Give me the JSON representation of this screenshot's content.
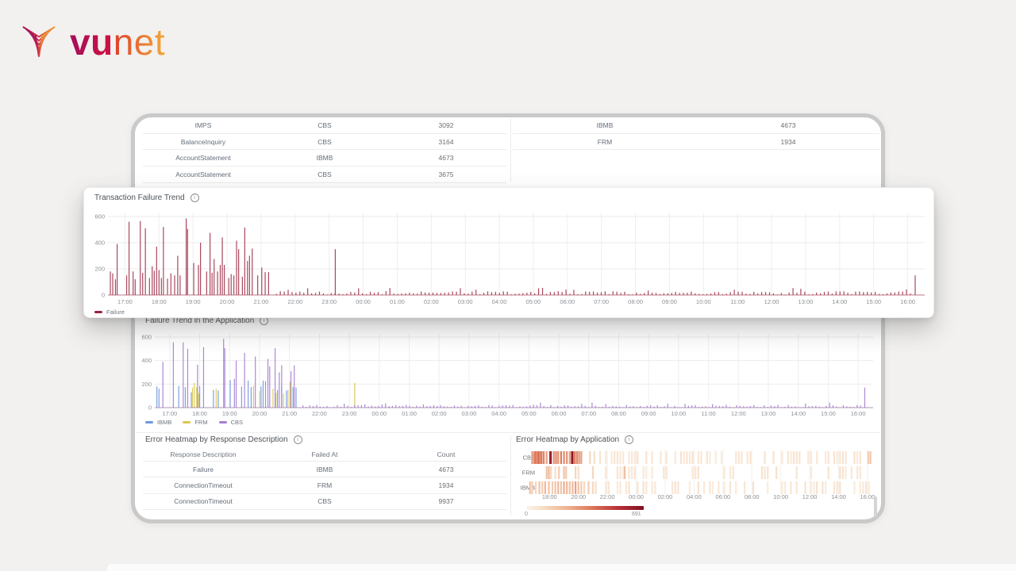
{
  "brand": {
    "primary": "vu",
    "secondary": "net"
  },
  "colors": {
    "page_bg": "#f2f1ef",
    "frame_border": "#c9c9c9",
    "failure": "#a23850",
    "ibmb": "#7297dd",
    "frm": "#d8c84e",
    "cbs": "#a47fd1",
    "heat_dark": "#7e1222"
  },
  "top_tables": {
    "left_rows": [
      [
        "IMPS",
        "CBS",
        "3092"
      ],
      [
        "BalanceInquiry",
        "CBS",
        "3164"
      ],
      [
        "AccountStatement",
        "IBMB",
        "4673"
      ],
      [
        "AccountStatement",
        "CBS",
        "3675"
      ]
    ],
    "right_rows": [
      [
        "IBMB",
        "4673"
      ],
      [
        "FRM",
        "1934"
      ]
    ]
  },
  "popup": {
    "title": "Transaction Failure Trend",
    "legend": [
      {
        "label": "Failure",
        "color": "#9b2140"
      }
    ]
  },
  "app_panel": {
    "title": "Failure Trend in the Application",
    "legend": [
      {
        "label": "IBMB",
        "color": "#7297dd"
      },
      {
        "label": "FRM",
        "color": "#d8c84e"
      },
      {
        "label": "CBS",
        "color": "#a47fd1"
      }
    ]
  },
  "error_table": {
    "title": "Error Heatmap by Response Description",
    "headers": [
      "Response Description",
      "Failed At",
      "Count"
    ],
    "rows": [
      [
        "Failure",
        "IBMB",
        "4673"
      ],
      [
        "ConnectionTimeout",
        "FRM",
        "1934"
      ],
      [
        "ConnectionTimeout",
        "CBS",
        "9937"
      ]
    ]
  },
  "heatmap_panel": {
    "title": "Error Heatmap by Application",
    "scale_min": "0",
    "scale_max": "691"
  },
  "chart_data": [
    {
      "type": "line",
      "title": "Transaction Failure Trend",
      "ylabel": "",
      "xlabel": "",
      "ylim": [
        0,
        600
      ],
      "yticks": [
        0,
        200,
        400,
        600
      ],
      "xticks": [
        "17:00",
        "18:00",
        "19:00",
        "20:00",
        "21:00",
        "22:00",
        "23:00",
        "00:00",
        "01:00",
        "02:00",
        "03:00",
        "04:00",
        "05:00",
        "06:00",
        "07:00",
        "08:00",
        "09:00",
        "10:00",
        "11:00",
        "12:00",
        "13:00",
        "14:00",
        "15:00",
        "16:00"
      ],
      "legend_position": "bottom-left",
      "series": [
        {
          "name": "Failure",
          "color": "#a23850",
          "spikes": [
            [
              0.07,
              180
            ],
            [
              0.14,
              165
            ],
            [
              0.22,
              120
            ],
            [
              0.27,
              390
            ],
            [
              0.55,
              150
            ],
            [
              0.62,
              560
            ],
            [
              0.74,
              180
            ],
            [
              0.8,
              120
            ],
            [
              0.95,
              565
            ],
            [
              1.02,
              170
            ],
            [
              1.1,
              510
            ],
            [
              1.22,
              130
            ],
            [
              1.3,
              220
            ],
            [
              1.36,
              185
            ],
            [
              1.43,
              370
            ],
            [
              1.5,
              190
            ],
            [
              1.57,
              130
            ],
            [
              1.63,
              520
            ],
            [
              1.75,
              125
            ],
            [
              1.85,
              165
            ],
            [
              1.96,
              150
            ],
            [
              2.05,
              300
            ],
            [
              2.12,
              150
            ],
            [
              2.3,
              585
            ],
            [
              2.34,
              505
            ],
            [
              2.52,
              245
            ],
            [
              2.66,
              230
            ],
            [
              2.72,
              400
            ],
            [
              2.9,
              180
            ],
            [
              3,
              475
            ],
            [
              3.06,
              170
            ],
            [
              3.12,
              275
            ],
            [
              3.22,
              180
            ],
            [
              3.3,
              230
            ],
            [
              3.36,
              440
            ],
            [
              3.42,
              230
            ],
            [
              3.55,
              130
            ],
            [
              3.62,
              160
            ],
            [
              3.7,
              150
            ],
            [
              3.78,
              415
            ],
            [
              3.84,
              350
            ],
            [
              3.95,
              140
            ],
            [
              4.02,
              515
            ],
            [
              4.1,
              260
            ],
            [
              4.16,
              300
            ],
            [
              4.24,
              355
            ],
            [
              4.4,
              150
            ],
            [
              4.52,
              210
            ],
            [
              4.62,
              175
            ],
            [
              4.72,
              175
            ],
            [
              6.68,
              350
            ],
            [
              23.72,
              150
            ]
          ],
          "noise": {
            "from": 4.95,
            "to": 23.62,
            "step": 0.115,
            "base": 4,
            "max": 26,
            "seed": 1.3
          }
        }
      ]
    },
    {
      "type": "line",
      "title": "Failure Trend in the Application",
      "ylabel": "",
      "xlabel": "",
      "ylim": [
        0,
        600
      ],
      "yticks": [
        0,
        200,
        400,
        600
      ],
      "xticks": [
        "17:00",
        "18:00",
        "19:00",
        "20:00",
        "21:00",
        "22:00",
        "23:00",
        "00:00",
        "01:00",
        "02:00",
        "03:00",
        "04:00",
        "05:00",
        "06:00",
        "07:00",
        "08:00",
        "09:00",
        "10:00",
        "11:00",
        "12:00",
        "13:00",
        "14:00",
        "15:00",
        "16:00"
      ],
      "legend_position": "bottom-left",
      "series": [
        {
          "name": "IBMB",
          "color": "#7297dd",
          "spikes": [
            [
              0.07,
              180
            ],
            [
              0.14,
              160
            ],
            [
              0.8,
              185
            ],
            [
              1.02,
              175
            ],
            [
              1.22,
              130
            ],
            [
              1.5,
              185
            ],
            [
              1.96,
              150
            ],
            [
              2.12,
              145
            ],
            [
              2.52,
              235
            ],
            [
              2.9,
              180
            ],
            [
              3.12,
              230
            ],
            [
              3.22,
              175
            ],
            [
              3.55,
              180
            ],
            [
              3.62,
              230
            ],
            [
              3.7,
              225
            ],
            [
              4.1,
              150
            ],
            [
              4.24,
              180
            ],
            [
              4.4,
              145
            ],
            [
              4.62,
              175
            ],
            [
              4.72,
              170
            ]
          ]
        },
        {
          "name": "FRM",
          "color": "#d8c84e",
          "spikes": [
            [
              1.26,
              170
            ],
            [
              1.32,
              210
            ],
            [
              1.4,
              175
            ],
            [
              1.47,
              120
            ],
            [
              2.05,
              160
            ],
            [
              3.3,
              185
            ],
            [
              3.5,
              140
            ],
            [
              3.95,
              160
            ],
            [
              4.05,
              125
            ],
            [
              4.3,
              120
            ],
            [
              4.45,
              150
            ],
            [
              4.52,
              220
            ],
            [
              6.68,
              210
            ]
          ]
        },
        {
          "name": "CBS",
          "color": "#a47fd1",
          "spikes": [
            [
              0.27,
              390
            ],
            [
              0.62,
              555
            ],
            [
              0.95,
              555
            ],
            [
              1.1,
              500
            ],
            [
              1.43,
              365
            ],
            [
              1.63,
              515
            ],
            [
              2.3,
              585
            ],
            [
              2.34,
              505
            ],
            [
              2.66,
              245
            ],
            [
              2.72,
              400
            ],
            [
              3,
              465
            ],
            [
              3.36,
              435
            ],
            [
              3.78,
              415
            ],
            [
              3.84,
              350
            ],
            [
              4.02,
              505
            ],
            [
              4.16,
              300
            ],
            [
              4.24,
              360
            ],
            [
              4.55,
              310
            ],
            [
              4.66,
              360
            ],
            [
              23.72,
              170
            ]
          ],
          "noise": {
            "from": 4.95,
            "to": 23.62,
            "step": 0.115,
            "base": 3,
            "max": 20,
            "seed": 2.7
          }
        }
      ]
    },
    {
      "type": "heatmap",
      "title": "Error Heatmap by Application",
      "rows": [
        "CBS",
        "FRM",
        "IBMB"
      ],
      "xticks": [
        "18:00",
        "20:00",
        "22:00",
        "00:00",
        "02:00",
        "04:00",
        "06:00",
        "08:00",
        "10:00",
        "12:00",
        "14:00",
        "16:00"
      ],
      "scale": {
        "min": 0,
        "max": 691
      },
      "cells": {
        "CBS": [
          [
            0.3,
            0.5
          ],
          [
            0.45,
            0.55
          ],
          [
            0.55,
            0.6
          ],
          [
            0.65,
            0.5
          ],
          [
            0.75,
            0.65
          ],
          [
            0.85,
            0.5
          ],
          [
            0.95,
            0.6
          ],
          [
            1.1,
            0.55
          ],
          [
            1.3,
            0.45
          ],
          [
            1.55,
            1.0
          ],
          [
            1.6,
            0.9
          ],
          [
            1.8,
            0.5
          ],
          [
            1.95,
            0.55
          ],
          [
            2.1,
            0.5
          ],
          [
            2.3,
            0.6
          ],
          [
            2.5,
            0.55
          ],
          [
            2.7,
            0.5
          ],
          [
            2.9,
            0.45
          ],
          [
            3.05,
            1.0
          ],
          [
            3.1,
            0.95
          ],
          [
            3.25,
            0.6
          ],
          [
            3.4,
            0.55
          ],
          [
            3.55,
            0.5
          ],
          [
            3.7,
            0.45
          ],
          [
            4.3,
            0.2
          ],
          [
            4.6,
            0.15
          ],
          [
            23.55,
            0.25
          ],
          [
            23.7,
            0.3
          ]
        ],
        "FRM": [
          [
            1.3,
            0.3
          ],
          [
            1.45,
            0.35
          ],
          [
            1.6,
            0.2
          ],
          [
            1.9,
            0.15
          ],
          [
            2.15,
            0.25
          ],
          [
            2.5,
            0.3
          ],
          [
            2.65,
            0.25
          ],
          [
            3.3,
            0.2
          ],
          [
            3.5,
            0.15
          ],
          [
            4.5,
            0.2
          ],
          [
            6.7,
            0.35
          ]
        ],
        "IBMB": [
          [
            0.15,
            0.3
          ],
          [
            0.3,
            0.25
          ],
          [
            0.55,
            0.2
          ],
          [
            0.8,
            0.3
          ],
          [
            1.0,
            0.25
          ],
          [
            1.2,
            0.35
          ],
          [
            1.45,
            0.3
          ],
          [
            1.7,
            0.25
          ],
          [
            1.9,
            0.3
          ],
          [
            2.1,
            0.35
          ],
          [
            2.3,
            0.3
          ],
          [
            2.5,
            0.4
          ],
          [
            2.7,
            0.35
          ],
          [
            2.9,
            0.3
          ],
          [
            3.1,
            0.35
          ],
          [
            3.3,
            0.45
          ],
          [
            3.5,
            0.3
          ],
          [
            3.7,
            0.25
          ],
          [
            3.9,
            0.2
          ],
          [
            4.2,
            0.25
          ],
          [
            4.5,
            0.2
          ],
          [
            4.7,
            0.15
          ]
        ]
      },
      "noise": {
        "densities": [
          0.55,
          0.3,
          0.45
        ],
        "imin": 0.04,
        "imax": 0.13,
        "from": 5,
        "to": 23.9,
        "step": 0.2
      }
    }
  ]
}
